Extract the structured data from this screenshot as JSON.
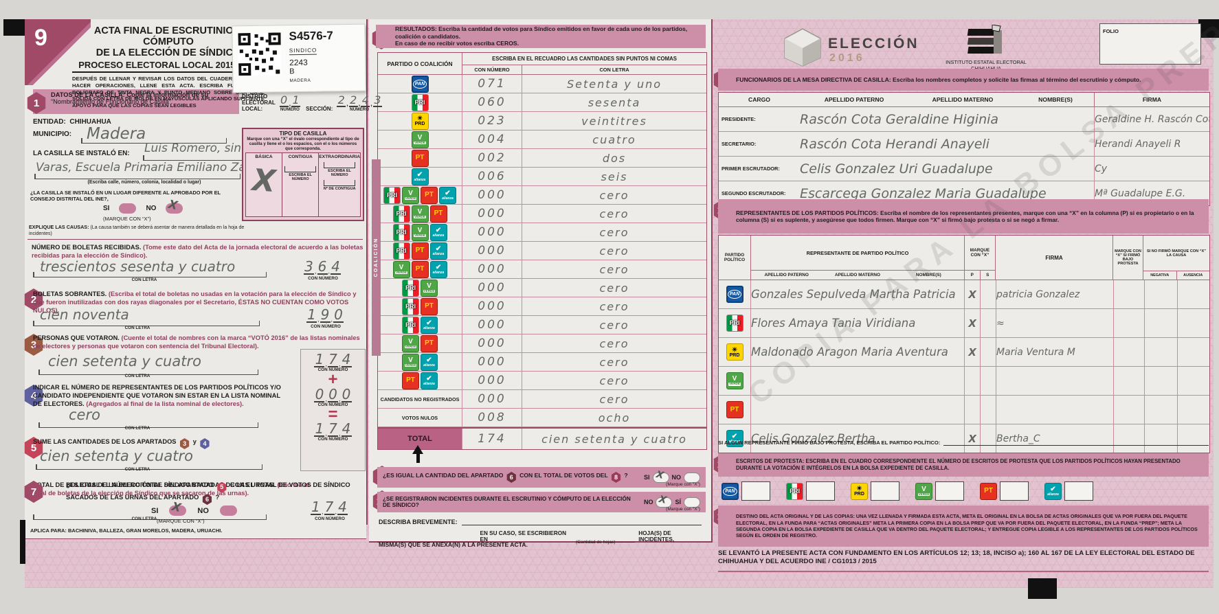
{
  "page": {
    "corner_number": "9"
  },
  "header": {
    "title1": "ACTA FINAL DE ESCRUTINIO Y CÓMPUTO",
    "title2": "DE LA ELECCIÓN DE SÍNDICO",
    "subtitle": "PROCESO ELECTORAL LOCAL 2015-2016",
    "instructions": "DESPUÉS DE LLENAR Y REVISAR LOS DATOS DEL CUADERNILLO PARA HACER OPERACIONES, LLENE ESTA ACTA. ESCRIBA FUERTE CON BOLÍGRAFO DE TINTA NEGRA Y PUNTO MEDIANO SOBRE UNA BASE SÓLIDA CON LETRA DE MOLDE EN MAYÚSCULAS APLICANDO SUFICIENTE APOYO PARA QUE LAS COPIAS SEAN LEGIBLES",
    "sticker": {
      "code": "S4576-7",
      "election": "SINDICO",
      "section": "2243",
      "letter": "B",
      "place": "MADERA"
    },
    "eleccion_logo": {
      "line1": "ELECCIÓN",
      "line2": "2016"
    },
    "iee": {
      "line1": "INSTITUTO ESTATAL ELECTORAL",
      "line2": "CHIHUAHUA"
    },
    "folio_label": "FOLIO"
  },
  "s1": {
    "num": "1",
    "title": "DATOS DE LA CASILLA: Copie la información de su",
    "title2": "“Nombramiento de Funcionario de Casilla”.",
    "distrito_label": "DISTRITO",
    "distrito_label2": "ELECTORAL LOCAL:",
    "distrito_value": "01",
    "numero_caption": "NÚMERO",
    "seccion_label": "SECCIÓN:",
    "seccion_value": "2243",
    "entidad_label": "ENTIDAD:",
    "entidad_value": "CHIHUAHUA",
    "municipio_label": "MUNICIPIO:",
    "municipio_value": "Madera",
    "instalada_label": "LA CASILLA SE INSTALÓ EN:",
    "instalada_line1": "Luis Romero, sin número, Las",
    "instalada_line2": "Varas, Escuela Primaria Emiliano Zapata",
    "instalada_caption": "(Escriba calle, número, colonia, localidad o lugar)",
    "lugar_q": "¿LA CASILLA SE INSTALÓ EN UN LUGAR DIFERENTE AL APROBADO POR EL CONSEJO DISTRITAL DEL INE?,",
    "si": "SI",
    "no": "NO",
    "marque": "(MARQUE CON “X”)",
    "lugar_answer": "NO",
    "explique": "EXPLIQUE LAS CAUSAS:",
    "explique2": "(La causa también se deberá asentar de manera detallada en la hoja de incidentes)",
    "tipo": {
      "title": "TIPO DE CASILLA",
      "desc": "Marque con una “X” el óvalo correspondiente al tipo de casilla y llene el o los espacios, con el o los números que corresponda.",
      "basica": "BÁSICA",
      "contigua": "CONTIGUA",
      "extra": "EXTRAORDINARIA",
      "escriba": "ESCRIBA EL NÚMERO",
      "n_contigua": "Nº DE CONTIGUA",
      "basica_mark": "X"
    }
  },
  "boletas": {
    "title": "NÚMERO DE BOLETAS RECIBIDAS.",
    "note": "(Tome este dato del Acta de la jornada electoral de acuerdo a las boletas recibidas para la elección de Síndico).",
    "letra": "trescientos  sesenta  y  cuatro",
    "numero": "364",
    "con_letra": "CON LETRA",
    "con_numero": "CON NÚMERO"
  },
  "s2": {
    "num": "2",
    "title": "BOLETAS SOBRANTES.",
    "note": "(Escriba el total de boletas no usadas en la votación para la elección de Síndico y que fueron inutilizadas con dos rayas diagonales por el Secretario, ÉSTAS NO CUENTAN COMO VOTOS NULOS).",
    "letra": "cien   noventa",
    "numero": "190"
  },
  "s3": {
    "num": "3",
    "title": "PERSONAS QUE VOTARON.",
    "note": "(Cuente el total de nombres con la marca “VOTÓ 2016” de las listas nominales de electores y personas que votaron con sentencia del Tribunal Electoral).",
    "letra": "cien   setenta   y cuatro",
    "numero": "174"
  },
  "s4": {
    "num": "4",
    "title": "INDICAR EL NÚMERO DE REPRESENTANTES DE LOS PARTIDOS POLÍTICOS Y/O CANDIDATO INDEPENDIENTE QUE VOTARON SIN ESTAR EN LA LISTA NOMINAL DE ELECTORES.",
    "note": "(Agregados al final de la lista nominal de electores).",
    "letra": "cero",
    "numero": "000"
  },
  "s5": {
    "num": "5",
    "title": "SUME LAS CANTIDADES DE LOS APARTADOS",
    "ref3": "3",
    "y_label": "y",
    "ref4": "4",
    "letra": "cien setenta  y  cuatro",
    "numero": "174"
  },
  "s6": {
    "num": "6",
    "title": "TOTAL DE BOLETAS DE LA ELECCIÓN DE SÍNDICO SACADAS DE LAS URNAS.",
    "note": "(Escriba el total de boletas de la elección de Síndico que se sacaron de las urnas).",
    "letra": "",
    "numero": "174"
  },
  "s7": {
    "num": "7",
    "q1": "¿ES IGUAL EL NÚMERO TOTAL DEL APARTADO",
    "ref5": "5",
    "q2": "CON EL TOTAL DE VOTOS DE SÍNDICO SACADOS DE LAS URNAS DEL APARTADO",
    "ref6": "6",
    "q3": "?",
    "si": "SI",
    "no": "NO",
    "marque": "(MARQUE CON “X”)",
    "answer": "SI"
  },
  "aplica": "APLICA PARA:  BACHINIVA, BALLEZA, GRAN MORELOS, MADERA, URUACHI.",
  "s8": {
    "num": "8",
    "title": "RESULTADOS: Escriba la cantidad de votos para Síndico emitidos en favor de cada uno de los partidos, coalición o candidatos.",
    "title2": "En caso de no recibir votos escriba CEROS.",
    "col_party": "PARTIDO O COALICIÓN",
    "col_amounts": "ESCRIBA EN EL RECUADRO LAS CANTIDADES SIN PUNTOS NI COMAS",
    "col_num": "CON NÚMERO",
    "col_letter": "CON LETRA",
    "coalicion_label": "COALICIÓN",
    "rows": [
      {
        "parties": [
          "pan"
        ],
        "numero": "071",
        "letra": "Setenta  y  uno"
      },
      {
        "parties": [
          "pri"
        ],
        "numero": "060",
        "letra": "sesenta"
      },
      {
        "parties": [
          "prd"
        ],
        "numero": "023",
        "letra": "veintitres"
      },
      {
        "parties": [
          "verde"
        ],
        "numero": "004",
        "letra": "cuatro"
      },
      {
        "parties": [
          "pt"
        ],
        "numero": "002",
        "letra": "dos"
      },
      {
        "parties": [
          "alianza"
        ],
        "numero": "006",
        "letra": "seis"
      },
      {
        "parties": [
          "pri",
          "verde",
          "pt",
          "alianza"
        ],
        "coalition": true,
        "numero": "000",
        "letra": "cero"
      },
      {
        "parties": [
          "pri",
          "verde",
          "pt"
        ],
        "coalition": true,
        "numero": "000",
        "letra": "cero"
      },
      {
        "parties": [
          "pri",
          "verde",
          "alianza"
        ],
        "coalition": true,
        "numero": "000",
        "letra": "cero"
      },
      {
        "parties": [
          "pri",
          "pt",
          "alianza"
        ],
        "coalition": true,
        "numero": "000",
        "letra": "cero"
      },
      {
        "parties": [
          "verde",
          "pt",
          "alianza"
        ],
        "coalition": true,
        "numero": "000",
        "letra": "cero"
      },
      {
        "parties": [
          "pri",
          "verde"
        ],
        "coalition": true,
        "numero": "000",
        "letra": "cero"
      },
      {
        "parties": [
          "pri",
          "pt"
        ],
        "coalition": true,
        "numero": "000",
        "letra": "cero"
      },
      {
        "parties": [
          "pri",
          "alianza"
        ],
        "coalition": true,
        "numero": "000",
        "letra": "cero"
      },
      {
        "parties": [
          "verde",
          "pt"
        ],
        "coalition": true,
        "numero": "000",
        "letra": "cero"
      },
      {
        "parties": [
          "verde",
          "alianza"
        ],
        "coalition": true,
        "numero": "000",
        "letra": "cero"
      },
      {
        "parties": [
          "pt",
          "alianza"
        ],
        "coalition": true,
        "numero": "000",
        "letra": "cero"
      },
      {
        "label": "CANDIDATOS NO REGISTRADOS",
        "numero": "000",
        "letra": "cero"
      },
      {
        "label": "VOTOS NULOS",
        "numero": "008",
        "letra": "ocho"
      },
      {
        "label": "TOTAL",
        "total": true,
        "numero": "174",
        "letra": "cien setenta y cuatro"
      }
    ]
  },
  "s9": {
    "num": "9",
    "q": "¿ES IGUAL LA CANTIDAD DEL APARTADO",
    "ref6": "6",
    "q2": "CON EL TOTAL DE VOTOS DEL",
    "ref8": "8",
    "q3": "?",
    "si": "SI",
    "no": "NO",
    "marque": "(Marque con “X”)",
    "answer": "SI"
  },
  "s10": {
    "num": "10",
    "q": "¿SE REGISTRARON INCIDENTES DURANTE EL ESCRUTINIO Y CÓMPUTO DE LA ELECCIÓN DE SÍNDICO?",
    "no": "NO",
    "si": "SÍ",
    "marque": "(Marque con “X”)",
    "answer": "NO"
  },
  "incidentes": {
    "describa": "DESCRIBA BREVEMENTE:",
    "en_su_caso": "EN SU CASO, SE ESCRIBIERON EN",
    "cantidad": "(Cantidad de hojas)",
    "hojas": "HOJA(S) DE INCIDENTES,",
    "misma": "MISMA(S) QUE SE ANEXA(N) A LA PRESENTE ACTA."
  },
  "s11": {
    "num": "11",
    "title": "FUNCIONARIOS DE LA MESA DIRECTIVA DE CASILLA: Escriba los nombres completos y solicite las firmas al término del escrutinio y cómputo.",
    "headers": [
      "CARGO",
      "APELLIDO PATERNO",
      "APELLIDO MATERNO",
      "NOMBRE(S)",
      "FIRMA"
    ],
    "rows": [
      {
        "cargo": "PRESIDENTE:",
        "nombre": "Rascón   Cota  Geraldine  Higinia",
        "firma": "Geraldine H. Rascón Cota"
      },
      {
        "cargo": "SECRETARIO:",
        "nombre": "Rascón   Cota  Herandi  Anayeli",
        "firma": "Herandi Anayeli R"
      },
      {
        "cargo": "PRIMER ESCRUTADOR:",
        "nombre": "Celis   Gonzalez  Uri  Guadalupe",
        "firma": "Cy"
      },
      {
        "cargo": "SEGUNDO ESCRUTADOR:",
        "nombre": "Escarcega  Gonzalez  Maria  Guadalupe",
        "firma": "Mª Guadalupe E.G."
      }
    ]
  },
  "s12": {
    "num": "12",
    "title": "REPRESENTANTES DE LOS PARTIDOS POLÍTICOS: Escriba el nombre de los representantes presentes, marque con una “X” en la columna (P) si es propietario o en la columna (S) si es suplente, y asegúrese que todos firmen. Marque con “X” si firmó bajo protesta o si se negó a firmar.",
    "h_partido": "PARTIDO POLÍTICO",
    "h_rep": "REPRESENTANTE DE PARTIDO POLÍTICO",
    "h_ap": "APELLIDO PATERNO",
    "h_am": "APELLIDO MATERNO",
    "h_nom": "NOMBRE(S)",
    "h_marque": "MARQUE CON “X”",
    "h_p": "P",
    "h_s": "S",
    "h_firma": "FIRMA",
    "h_protesta": "MARQUE CON “X” SI FIRMÓ BAJO PROTESTA",
    "h_sino": "SI NO FIRMÓ MARQUE CON “X” LA CAUSA",
    "h_neg": "NEGATIVA",
    "h_aus": "AUSENCIA",
    "rows": [
      {
        "party": "pan",
        "nombre": "Gonzales Sepulveda Martha Patricia",
        "p": "X",
        "s": "",
        "firma": "patricia Gonzalez",
        "protesta": "",
        "negativa": "",
        "ausencia": ""
      },
      {
        "party": "pri",
        "nombre": "Flores Amaya Tania Viridiana",
        "p": "X",
        "s": "",
        "firma": "≈",
        "protesta": "",
        "negativa": "",
        "ausencia": ""
      },
      {
        "party": "prd",
        "nombre": "Maldonado Aragon Maria Aventura",
        "p": "X",
        "s": "",
        "firma": "Maria Ventura  M",
        "protesta": "",
        "negativa": "",
        "ausencia": ""
      },
      {
        "party": "verde",
        "nombre": "",
        "p": "",
        "s": "",
        "firma": "",
        "protesta": "",
        "negativa": "",
        "ausencia": ""
      },
      {
        "party": "pt",
        "nombre": "",
        "p": "",
        "s": "",
        "firma": "",
        "protesta": "",
        "negativa": "",
        "ausencia": ""
      },
      {
        "party": "alianza",
        "nombre": "Celis  Gonzalez  Bertha",
        "p": "X",
        "s": "",
        "firma": "Bertha_C",
        "protesta": "",
        "negativa": "",
        "ausencia": ""
      }
    ],
    "protesta_line": "SI ALGÚN REPRESENTANTE FIRMÓ BAJO PROTESTA, ESCRIBA EL PARTIDO POLÍTICO:"
  },
  "s13": {
    "num": "13",
    "title": "ESCRITOS DE PROTESTA: ESCRIBA EN EL CUADRO CORRESPONDIENTE EL NÚMERO DE ESCRITOS DE PROTESTA QUE LOS PARTIDOS POLÍTICOS HAYAN PRESENTADO DURANTE LA VOTACIÓN E INTÉGRELOS EN LA BOLSA  EXPEDIENTE DE CASILLA.",
    "parties": [
      "pan",
      "pri",
      "prd",
      "verde",
      "pt",
      "alianza"
    ]
  },
  "s14": {
    "num": "14",
    "title": "DESTINO DEL ACTA ORIGINAL Y DE LAS COPIAS:",
    "body": "UNA VEZ LLENADA Y FIRMADA ESTA ACTA, META EL ORIGINAL EN LA BOLSA DE ACTAS ORIGINALES QUE VA POR FUERA DEL PAQUETE ELECTORAL, EN LA FUNDA PARA “ACTAS ORIGINALES” META LA PRIMERA COPIA EN LA BOLSA PREP QUE VA POR FUERA DEL PAQUETE ELECTORAL, EN LA FUNDA “PREP”; META LA SEGUNDA COPIA EN LA BOLSA EXPEDIENTE DE CASILLA QUE VA DENTRO DEL PAQUETE ELECTORAL; Y ENTREGUE COPIA LEGIBLE A LOS REPRESENTANTES DE LOS PARTIDOS POLÍTICOS SEGÚN EL ORDEN DE REGISTRO."
  },
  "legal": "SE LEVANTÓ LA PRESENTE ACTA CON FUNDAMENTO EN LOS ARTÍCULOS 12; 13; 18, INCISO a); 160 AL 167 DE LA LEY  ELECTORAL DEL ESTADO DE CHIHUAHUA Y DEL ACUERDO INE / CG1013 / 2015",
  "watermark": "COPIA PARA LA BOLSA PREP",
  "colors": {
    "maroon": "#8e3f5d",
    "band": "#cd8ea7",
    "pan_blue": "#1559a4",
    "pri_green": "#009a44",
    "prd_yellow": "#ffd500",
    "verde_green": "#4fa646",
    "pt_red": "#e63022",
    "alianza_teal": "#00a3ad"
  }
}
